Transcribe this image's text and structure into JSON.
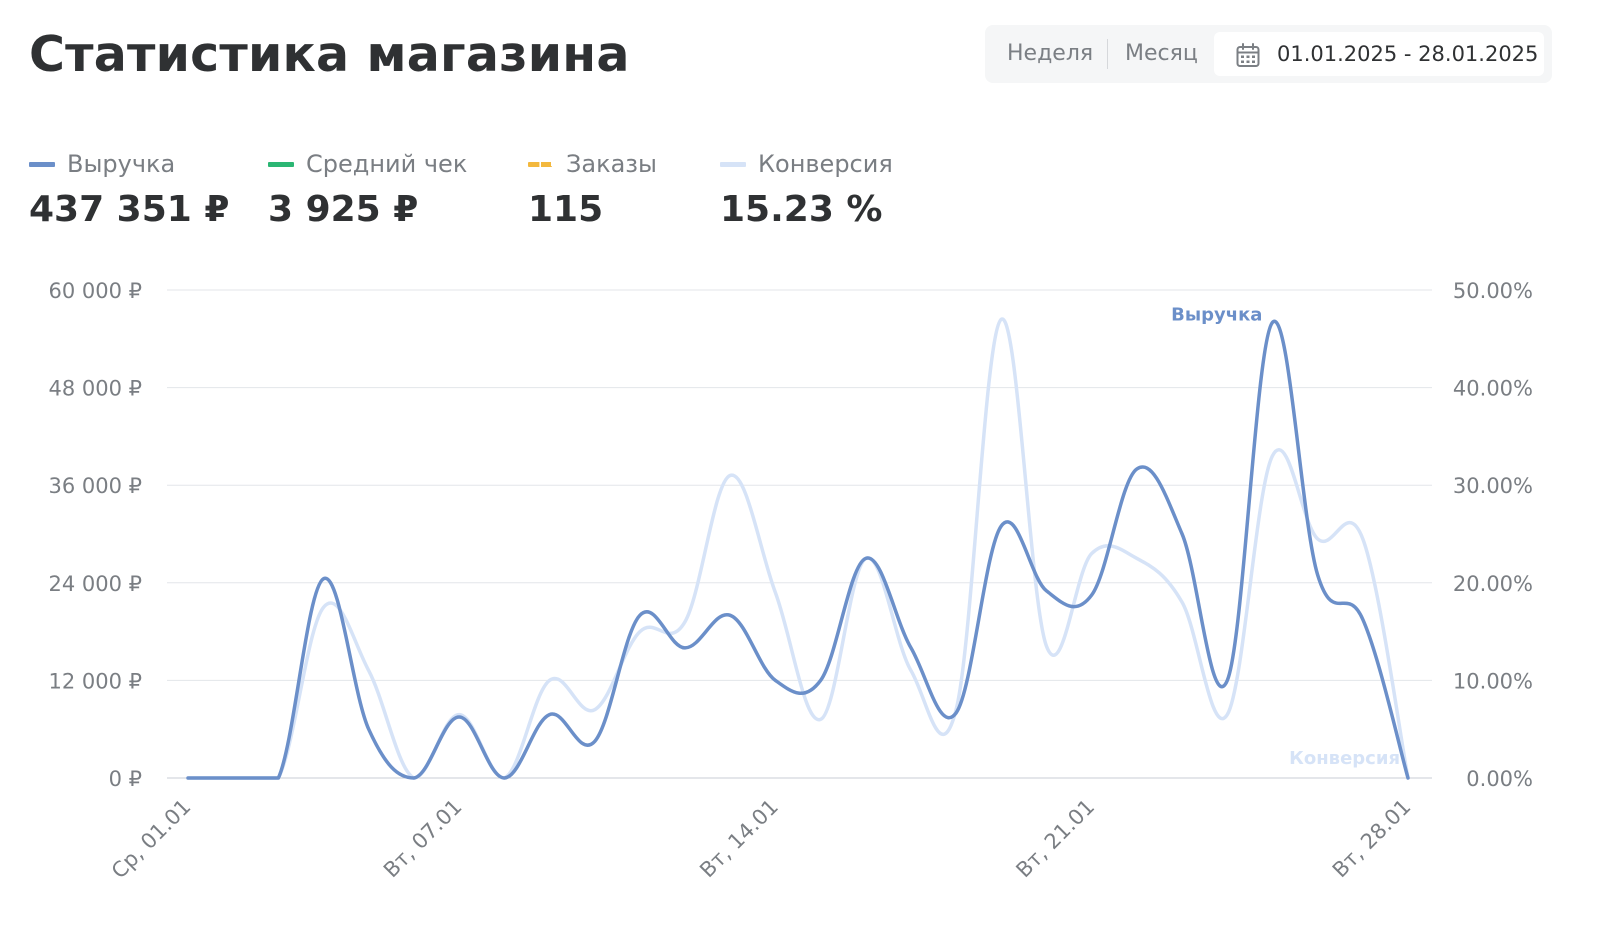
{
  "header": {
    "title": "Статистика магазина"
  },
  "period": {
    "week_label": "Неделя",
    "month_label": "Месяц",
    "date_range": "01.01.2025 - 28.01.2025"
  },
  "metrics": [
    {
      "label": "Выручка",
      "value": "437 351 ₽",
      "color": "#6b8fc9",
      "style": "solid"
    },
    {
      "label": "Средний чек",
      "value": "3 925 ₽",
      "color": "#2bb673",
      "style": "solid"
    },
    {
      "label": "Заказы",
      "value": "115",
      "color": "#f3b83d",
      "style": "dashed"
    },
    {
      "label": "Конверсия",
      "value": "15.23 %",
      "color": "#d6e3f7",
      "style": "solid"
    }
  ],
  "chart_data": {
    "type": "line",
    "x": [
      "01.01",
      "02.01",
      "03.01",
      "04.01",
      "05.01",
      "06.01",
      "07.01",
      "08.01",
      "09.01",
      "10.01",
      "11.01",
      "12.01",
      "13.01",
      "14.01",
      "15.01",
      "16.01",
      "17.01",
      "18.01",
      "19.01",
      "20.01",
      "21.01",
      "22.01",
      "23.01",
      "24.01",
      "25.01",
      "26.01",
      "27.01",
      "28.01"
    ],
    "x_tick_labels": [
      {
        "index": 0,
        "label": "Ср, 01.01"
      },
      {
        "index": 6,
        "label": "Вт, 07.01"
      },
      {
        "index": 13,
        "label": "Вт, 14.01"
      },
      {
        "index": 20,
        "label": "Вт, 21.01"
      },
      {
        "index": 27,
        "label": "Вт, 28.01"
      }
    ],
    "y_left_ticks": [
      "0 ₽",
      "12 000 ₽",
      "24 000 ₽",
      "36 000 ₽",
      "48 000 ₽",
      "60 000 ₽"
    ],
    "y_right_ticks": [
      "0.00%",
      "10.00%",
      "20.00%",
      "30.00%",
      "40.00%",
      "50.00%"
    ],
    "ylim_left": [
      0,
      60000
    ],
    "ylim_right": [
      0,
      50
    ],
    "grid": true,
    "series": [
      {
        "name": "Выручка",
        "axis": "left",
        "color": "#6b8fc9",
        "values": [
          0,
          0,
          0,
          24500,
          6000,
          0,
          7500,
          0,
          7800,
          4500,
          20000,
          16000,
          20000,
          12000,
          12000,
          27000,
          16000,
          8000,
          31000,
          23000,
          22500,
          38000,
          30000,
          12000,
          56000,
          25000,
          19500,
          0
        ]
      },
      {
        "name": "Конверсия",
        "axis": "right",
        "color": "#d6e3f7",
        "values": [
          0,
          0,
          0,
          17.5,
          11,
          0,
          6.5,
          0,
          10,
          7,
          15,
          16,
          31,
          19,
          6,
          22.5,
          11,
          7,
          47,
          13.5,
          23,
          22.5,
          18,
          6.5,
          33,
          24.5,
          24.5,
          0
        ]
      }
    ]
  }
}
